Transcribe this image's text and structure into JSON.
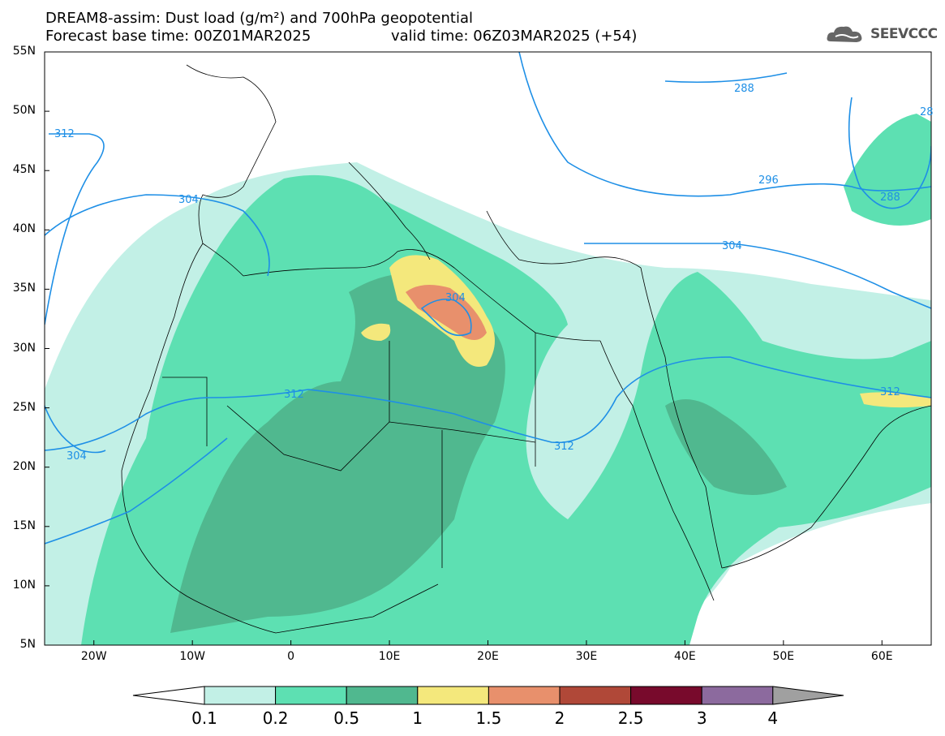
{
  "title": {
    "line1": "DREAM8-assim: Dust load (g/m²) and 700hPa geopotential",
    "line2_left": "Forecast base time: 00Z01MAR2025",
    "line2_right": "valid time: 06Z03MAR2025 (+54)"
  },
  "logo": {
    "text": "SEEVCCC",
    "icon": "cloud-icon"
  },
  "axes": {
    "lat_labels": [
      "55N",
      "50N",
      "45N",
      "40N",
      "35N",
      "30N",
      "25N",
      "20N",
      "15N",
      "10N",
      "5N"
    ],
    "lon_labels": [
      "20W",
      "10W",
      "0",
      "10E",
      "20E",
      "30E",
      "40E",
      "50E",
      "60E"
    ],
    "lat_range": [
      5,
      55
    ],
    "lon_range": [
      -25,
      65
    ]
  },
  "contours": {
    "labels": [
      "312",
      "304",
      "288",
      "296",
      "304",
      "304",
      "312",
      "312",
      "304",
      "288",
      "28"
    ]
  },
  "colorbar": {
    "ticks": [
      "0.1",
      "0.2",
      "0.5",
      "1",
      "1.5",
      "2",
      "2.5",
      "3",
      "4"
    ],
    "colors": [
      "#ffffff",
      "#c2f0e6",
      "#5de0b2",
      "#50b88f",
      "#f4e87c",
      "#e8906c",
      "#b04838",
      "#780a2c",
      "#8c6a9e",
      "#a0a0a0"
    ]
  }
}
